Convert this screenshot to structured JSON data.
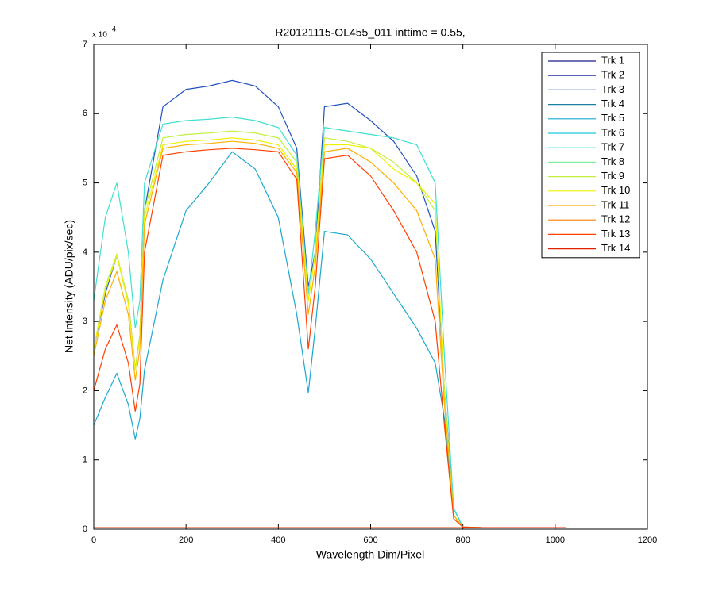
{
  "chart_data": {
    "type": "line",
    "title": "R20121115-OL455_011 inttime = 0.55,",
    "xlabel": "Wavelength Dim/Pixel",
    "ylabel": "Net Intensity (ADU/pix/sec)",
    "exponent_base": "x 10",
    "exponent": "4",
    "xlim": [
      0,
      1200
    ],
    "xticks": [
      0,
      200,
      400,
      600,
      800,
      1000,
      1200
    ],
    "ylim": [
      0,
      7
    ],
    "yticks": [
      0,
      1,
      2,
      3,
      4,
      5,
      6,
      7
    ],
    "grid": false,
    "legend_position": "upper-right",
    "x": [
      0,
      25,
      50,
      75,
      90,
      100,
      110,
      150,
      200,
      250,
      300,
      350,
      400,
      440,
      465,
      480,
      500,
      550,
      600,
      650,
      700,
      740,
      760,
      780,
      800,
      850,
      900,
      950,
      1000,
      1024
    ],
    "series": [
      {
        "name": "Trk 1",
        "color": "#1a1a8c",
        "values": [
          0.02,
          0.02,
          0.02,
          0.02,
          0.02,
          0.02,
          0.02,
          0.02,
          0.02,
          0.02,
          0.02,
          0.02,
          0.02,
          0.02,
          0.02,
          0.02,
          0.02,
          0.02,
          0.02,
          0.02,
          0.02,
          0.02,
          0.02,
          0.02,
          0.02,
          0.02,
          0.02,
          0.02,
          0.02,
          0.02
        ]
      },
      {
        "name": "Trk 2",
        "color": "#1a2fa6",
        "values": [
          0.02,
          0.02,
          0.02,
          0.02,
          0.02,
          0.02,
          0.02,
          0.02,
          0.02,
          0.02,
          0.02,
          0.02,
          0.02,
          0.02,
          0.02,
          0.02,
          0.02,
          0.02,
          0.02,
          0.02,
          0.02,
          0.02,
          0.02,
          0.02,
          0.02,
          0.02,
          0.02,
          0.02,
          0.02,
          0.02
        ]
      },
      {
        "name": "Trk 3",
        "color": "#2050c0",
        "values": [
          2.6,
          3.4,
          3.95,
          3.3,
          2.3,
          2.8,
          4.6,
          6.1,
          6.35,
          6.4,
          6.48,
          6.4,
          6.1,
          5.5,
          3.5,
          4.0,
          6.1,
          6.15,
          5.9,
          5.6,
          5.1,
          4.3,
          2.0,
          0.3,
          0.03,
          0.02,
          0.02,
          0.02,
          0.02,
          0.02
        ]
      },
      {
        "name": "Trk 4",
        "color": "#1a7fa0",
        "values": [
          0.02,
          0.02,
          0.02,
          0.02,
          0.02,
          0.02,
          0.02,
          0.02,
          0.02,
          0.02,
          0.02,
          0.02,
          0.02,
          0.02,
          0.02,
          0.02,
          0.02,
          0.02,
          0.02,
          0.02,
          0.02,
          0.02,
          0.02,
          0.02,
          0.02,
          0.02,
          0.02,
          0.02,
          0.02,
          0.02
        ]
      },
      {
        "name": "Trk 5",
        "color": "#1aa8d0",
        "values": [
          1.5,
          1.9,
          2.25,
          1.8,
          1.3,
          1.6,
          2.3,
          3.6,
          4.6,
          5.0,
          5.45,
          5.2,
          4.5,
          3.1,
          1.97,
          2.9,
          4.3,
          4.25,
          3.9,
          3.4,
          2.9,
          2.4,
          1.6,
          0.2,
          0.03,
          0.02,
          0.02,
          0.02,
          0.02,
          0.02
        ]
      },
      {
        "name": "Trk 6",
        "color": "#1ac8d8",
        "values": [
          0.02,
          0.02,
          0.02,
          0.02,
          0.02,
          0.02,
          0.02,
          0.02,
          0.02,
          0.02,
          0.02,
          0.02,
          0.02,
          0.02,
          0.02,
          0.02,
          0.02,
          0.02,
          0.02,
          0.02,
          0.02,
          0.02,
          0.02,
          0.02,
          0.02,
          0.02,
          0.02,
          0.02,
          0.02,
          0.02
        ]
      },
      {
        "name": "Trk 7",
        "color": "#40e0d0",
        "values": [
          3.3,
          4.5,
          5.0,
          4.0,
          2.9,
          3.3,
          5.0,
          5.85,
          5.9,
          5.92,
          5.95,
          5.9,
          5.8,
          5.4,
          3.4,
          4.3,
          5.8,
          5.75,
          5.7,
          5.65,
          5.55,
          5.0,
          2.5,
          0.3,
          0.03,
          0.02,
          0.02,
          0.02,
          0.02,
          0.02
        ]
      },
      {
        "name": "Trk 8",
        "color": "#80f0a0",
        "values": [
          0.02,
          0.02,
          0.02,
          0.02,
          0.02,
          0.02,
          0.02,
          0.02,
          0.02,
          0.02,
          0.02,
          0.02,
          0.02,
          0.02,
          0.02,
          0.02,
          0.02,
          0.02,
          0.02,
          0.02,
          0.02,
          0.02,
          0.02,
          0.02,
          0.02,
          0.02,
          0.02,
          0.02,
          0.02,
          0.02
        ]
      },
      {
        "name": "Trk 9",
        "color": "#c0f040",
        "values": [
          2.6,
          3.5,
          3.97,
          3.3,
          2.3,
          2.8,
          4.6,
          5.65,
          5.7,
          5.72,
          5.75,
          5.72,
          5.65,
          5.3,
          3.3,
          4.0,
          5.65,
          5.6,
          5.5,
          5.3,
          5.0,
          4.6,
          2.0,
          0.2,
          0.03,
          0.02,
          0.02,
          0.02,
          0.02,
          0.02
        ]
      },
      {
        "name": "Trk 10",
        "color": "#f0f000",
        "values": [
          2.6,
          3.45,
          3.95,
          3.25,
          2.3,
          2.75,
          4.5,
          5.55,
          5.6,
          5.62,
          5.65,
          5.62,
          5.55,
          5.2,
          3.3,
          3.95,
          5.55,
          5.55,
          5.5,
          5.2,
          5.0,
          4.7,
          1.9,
          0.2,
          0.03,
          0.02,
          0.02,
          0.02,
          0.02,
          0.02
        ]
      },
      {
        "name": "Trk 11",
        "color": "#ffb000",
        "values": [
          2.5,
          3.3,
          3.72,
          3.1,
          2.15,
          2.6,
          4.4,
          5.5,
          5.55,
          5.57,
          5.6,
          5.57,
          5.5,
          5.15,
          3.1,
          3.8,
          5.45,
          5.5,
          5.3,
          5.0,
          4.6,
          3.9,
          1.8,
          0.2,
          0.03,
          0.02,
          0.02,
          0.02,
          0.02,
          0.02
        ]
      },
      {
        "name": "Trk 12",
        "color": "#ff8000",
        "values": [
          0.02,
          0.02,
          0.02,
          0.02,
          0.02,
          0.02,
          0.02,
          0.02,
          0.02,
          0.02,
          0.02,
          0.02,
          0.02,
          0.02,
          0.02,
          0.02,
          0.02,
          0.02,
          0.02,
          0.02,
          0.02,
          0.02,
          0.02,
          0.02,
          0.02,
          0.02,
          0.02,
          0.02,
          0.02,
          0.02
        ]
      },
      {
        "name": "Trk 13",
        "color": "#ff4000",
        "values": [
          2.0,
          2.6,
          2.95,
          2.4,
          1.7,
          2.1,
          4.0,
          5.4,
          5.45,
          5.48,
          5.5,
          5.48,
          5.45,
          5.05,
          2.6,
          3.5,
          5.35,
          5.4,
          5.1,
          4.6,
          4.0,
          3.0,
          1.5,
          0.15,
          0.03,
          0.02,
          0.02,
          0.02,
          0.02,
          0.02
        ]
      },
      {
        "name": "Trk 14",
        "color": "#e02000",
        "values": [
          0.02,
          0.02,
          0.02,
          0.02,
          0.02,
          0.02,
          0.02,
          0.02,
          0.02,
          0.02,
          0.02,
          0.02,
          0.02,
          0.02,
          0.02,
          0.02,
          0.02,
          0.02,
          0.02,
          0.02,
          0.02,
          0.02,
          0.02,
          0.02,
          0.02,
          0.02,
          0.02,
          0.02,
          0.02,
          0.02
        ]
      }
    ]
  }
}
